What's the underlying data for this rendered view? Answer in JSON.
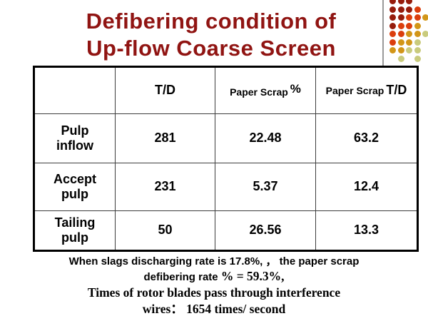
{
  "slide": {
    "title_line1": "Defibering condition of",
    "title_line2": "Up-flow Coarse Screen",
    "title_color": "#901412"
  },
  "table": {
    "header": {
      "col0": "",
      "col1": "T/D",
      "col2_text": "Paper Scrap",
      "col2_unit": "%",
      "col3_text": "Paper Scrap",
      "col3_unit": "T/D"
    },
    "rows": [
      {
        "label_line1": "Pulp",
        "label_line2": "inflow",
        "td": "281",
        "scrap_pct": "22.48",
        "scrap_td": "63.2"
      },
      {
        "label_line1": "Accept",
        "label_line2": "pulp",
        "td": "231",
        "scrap_pct": "5.37",
        "scrap_td": "12.4"
      },
      {
        "label_line1": "Tailing",
        "label_line2": "pulp",
        "td": "50",
        "scrap_pct": "26.56",
        "scrap_td": "13.3"
      }
    ]
  },
  "chart_data": {
    "type": "table",
    "columns": [
      "",
      "T/D",
      "Paper Scrap %",
      "Paper Scrap T/D"
    ],
    "rows": [
      [
        "Pulp inflow",
        281,
        22.48,
        63.2
      ],
      [
        "Accept pulp",
        231,
        5.37,
        12.4
      ],
      [
        "Tailing pulp",
        50,
        26.56,
        13.3
      ]
    ],
    "title": "Defibering condition of Up-flow Coarse Screen"
  },
  "caption": {
    "line1": "When slags discharging rate is 17.8%, ， the paper scrap",
    "line2_sans": "defibering rate ",
    "line2_serif": "% = 59.3%,",
    "line3": "Times of rotor blades pass through interference",
    "line4": "wires： 1654 times/ second"
  },
  "decor": {
    "line_color": "#9a9a9a",
    "dot_colors": {
      "d": "#961c0c",
      "r": "#db3e0d",
      "o": "#d29618",
      "g": "#c9cb7d"
    },
    "dot_rows": [
      "ddd--",
      "dddr-",
      "ddrro",
      "drro-",
      "rroog",
      "roog-",
      "oogg-",
      "-g-g-"
    ]
  }
}
